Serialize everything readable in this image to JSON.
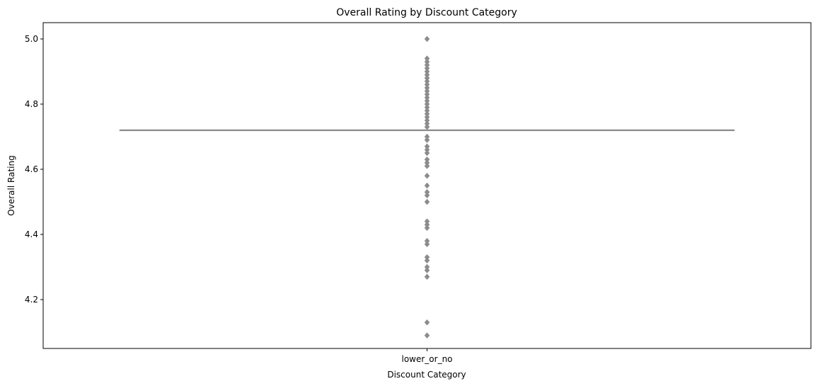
{
  "chart_data": {
    "type": "box",
    "title": "Overall Rating by Discount Category",
    "xlabel": "Discount Category",
    "ylabel": "Overall Rating",
    "categories": [
      "lower_or_no"
    ],
    "ylim": [
      4.05,
      5.05
    ],
    "yticks": [
      4.2,
      4.4,
      4.6,
      4.8,
      5.0
    ],
    "ytick_labels": [
      "4.2",
      "4.4",
      "4.6",
      "4.8",
      "5.0"
    ],
    "grid": false,
    "box": {
      "category": "lower_or_no",
      "median": 4.72,
      "q1": 4.72,
      "q3": 4.72,
      "whisker_low": 4.72,
      "whisker_high": 4.72
    },
    "outliers": [
      5.0,
      4.94,
      4.93,
      4.92,
      4.91,
      4.9,
      4.89,
      4.88,
      4.87,
      4.86,
      4.85,
      4.84,
      4.83,
      4.82,
      4.81,
      4.8,
      4.79,
      4.78,
      4.77,
      4.76,
      4.75,
      4.74,
      4.73,
      4.7,
      4.69,
      4.67,
      4.66,
      4.65,
      4.63,
      4.62,
      4.61,
      4.58,
      4.55,
      4.53,
      4.52,
      4.5,
      4.44,
      4.43,
      4.42,
      4.38,
      4.37,
      4.33,
      4.32,
      4.3,
      4.29,
      4.27,
      4.13,
      4.09
    ],
    "colors": {
      "box": "#8c8c8c",
      "outlier": "#8c8c8c",
      "axis": "#000000"
    }
  }
}
